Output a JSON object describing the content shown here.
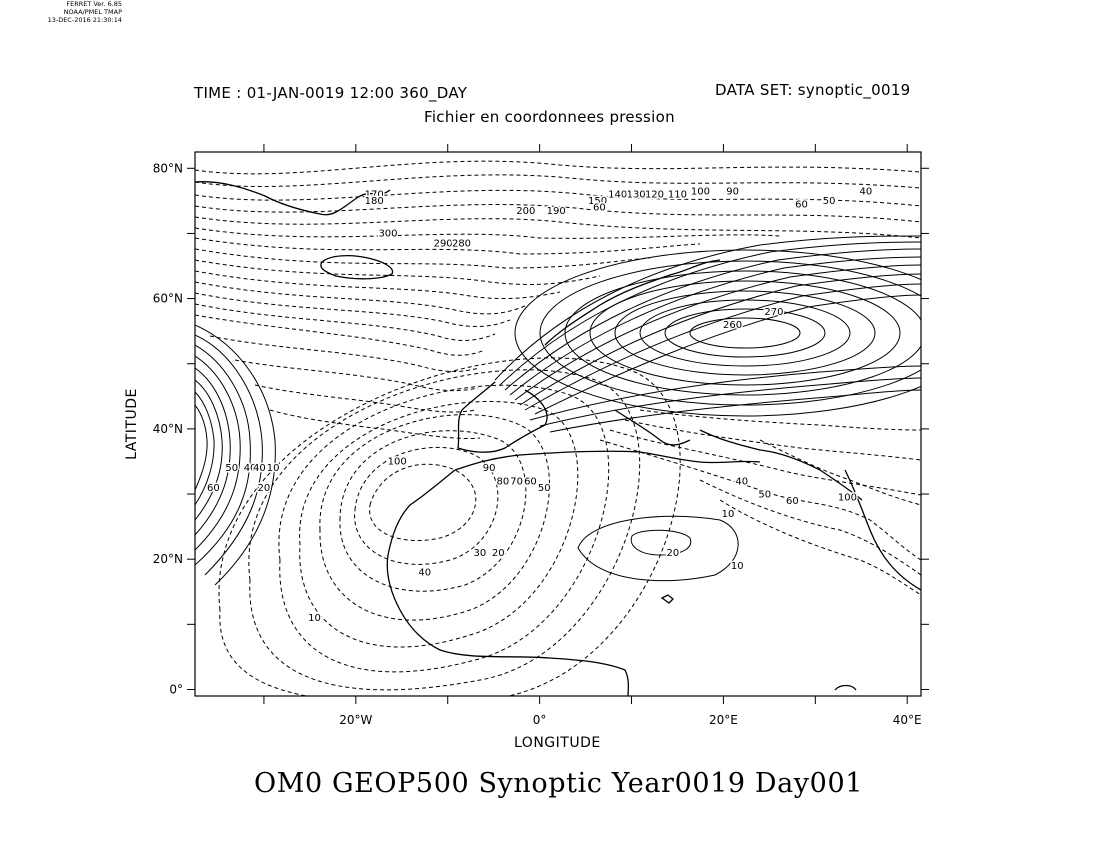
{
  "stamp": {
    "line1": "FERRET Ver. 6.85",
    "line2": "NOAA/PMEL TMAP",
    "line3": "13-DEC-2016 21:30:14"
  },
  "header": {
    "time": "TIME : 01-JAN-0019 12:00 360_DAY",
    "dataset": "DATA SET: synoptic_0019",
    "subtitle": "Fichier en coordonnees pression"
  },
  "axes": {
    "ylabel": "LATITUDE",
    "xlabel": "LONGITUDE",
    "lat_ticks": [
      {
        "value": 80,
        "label": "80°N"
      },
      {
        "value": 60,
        "label": "60°N"
      },
      {
        "value": 40,
        "label": "40°N"
      },
      {
        "value": 20,
        "label": "20°N"
      },
      {
        "value": 0,
        "label": "0°"
      }
    ],
    "lon_ticks": [
      {
        "value": -20,
        "label": "20°W"
      },
      {
        "value": 0,
        "label": "0°"
      },
      {
        "value": 20,
        "label": "20°E"
      },
      {
        "value": 40,
        "label": "40°E"
      }
    ],
    "lon_range": [
      -37.5,
      41.5
    ],
    "lat_range": [
      -1,
      82.5
    ],
    "minor_lon_step": 10,
    "minor_lat_step": 10
  },
  "contour_labels": [
    {
      "text": "170",
      "lon": -18,
      "lat": 75.5
    },
    {
      "text": "180",
      "lon": -18,
      "lat": 74.5
    },
    {
      "text": "300",
      "lon": -16.5,
      "lat": 69.5
    },
    {
      "text": "200",
      "lon": -1.5,
      "lat": 73
    },
    {
      "text": "190",
      "lon": 1.8,
      "lat": 73
    },
    {
      "text": "290",
      "lon": -10.5,
      "lat": 68
    },
    {
      "text": "280",
      "lon": -8.5,
      "lat": 68
    },
    {
      "text": "150",
      "lon": 6.3,
      "lat": 74.5
    },
    {
      "text": "140",
      "lon": 8.5,
      "lat": 75.5
    },
    {
      "text": "130",
      "lon": 10.5,
      "lat": 75.5
    },
    {
      "text": "120",
      "lon": 12.5,
      "lat": 75.5
    },
    {
      "text": "110",
      "lon": 15,
      "lat": 75.5
    },
    {
      "text": "100",
      "lon": 17.5,
      "lat": 76
    },
    {
      "text": "90",
      "lon": 21,
      "lat": 76
    },
    {
      "text": "60",
      "lon": 6.5,
      "lat": 73.5
    },
    {
      "text": "60",
      "lon": 28.5,
      "lat": 74
    },
    {
      "text": "50",
      "lon": 31.5,
      "lat": 74.5
    },
    {
      "text": "40",
      "lon": 35.5,
      "lat": 76
    },
    {
      "text": "270",
      "lon": 25.5,
      "lat": 57.5
    },
    {
      "text": "260",
      "lon": 21,
      "lat": 55.5
    },
    {
      "text": "100",
      "lon": -15.5,
      "lat": 34.5
    },
    {
      "text": "90",
      "lon": -5.5,
      "lat": 33.5
    },
    {
      "text": "80",
      "lon": -4,
      "lat": 31.5
    },
    {
      "text": "70",
      "lon": -2.5,
      "lat": 31.5
    },
    {
      "text": "60",
      "lon": -1,
      "lat": 31.5
    },
    {
      "text": "50",
      "lon": 0.5,
      "lat": 30.5
    },
    {
      "text": "60",
      "lon": -35.5,
      "lat": 30.5
    },
    {
      "text": "50",
      "lon": -33.5,
      "lat": 33.5
    },
    {
      "text": "40",
      "lon": -31.5,
      "lat": 33.5
    },
    {
      "text": "40",
      "lon": -30.5,
      "lat": 33.5
    },
    {
      "text": "20",
      "lon": -30,
      "lat": 30.5
    },
    {
      "text": "10",
      "lon": -29,
      "lat": 33.5
    },
    {
      "text": "40",
      "lon": 22,
      "lat": 31.5
    },
    {
      "text": "50",
      "lon": 24.5,
      "lat": 29.5
    },
    {
      "text": "60",
      "lon": 27.5,
      "lat": 28.5
    },
    {
      "text": "10",
      "lon": 20.5,
      "lat": 26.5
    },
    {
      "text": "100",
      "lon": 33.5,
      "lat": 29
    },
    {
      "text": "20",
      "lon": 14.5,
      "lat": 20.5
    },
    {
      "text": "10",
      "lon": 21.5,
      "lat": 18.5
    },
    {
      "text": "30",
      "lon": -6.5,
      "lat": 20.5
    },
    {
      "text": "20",
      "lon": -4.5,
      "lat": 20.5
    },
    {
      "text": "40",
      "lon": -12.5,
      "lat": 17.5
    },
    {
      "text": "10",
      "lon": -24.5,
      "lat": 10.5
    }
  ]
}
